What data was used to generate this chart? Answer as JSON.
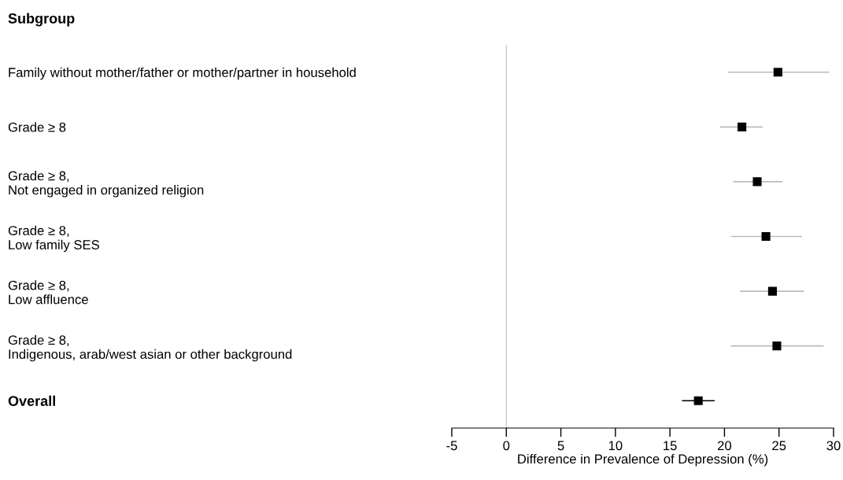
{
  "chart_data": {
    "type": "scatter",
    "orientation": "horizontal",
    "annotations": [
      "Subgroup"
    ],
    "xlabel": "Difference in Prevalence of Depression (%)",
    "categories": [
      "Family without mother/father or mother/partner in household",
      "Grade ≥ 8",
      "Grade ≥ 8,\nNot engaged in organized religion",
      "Grade ≥ 8,\nLow family SES",
      "Grade ≥ 8,\nLow affluence",
      "Grade ≥ 8,\nIndigenous, arab/west asian or other background",
      "Overall"
    ],
    "series": [
      {
        "color": "#000000",
        "values": [
          24.9,
          21.6,
          23.0,
          23.8,
          24.4,
          24.8,
          null
        ],
        "errors": [
          [
            20.3,
            29.6
          ],
          [
            19.6,
            23.5
          ],
          [
            20.8,
            25.3
          ],
          [
            20.6,
            27.1
          ],
          [
            21.4,
            27.3
          ],
          [
            20.6,
            29.1
          ],
          null
        ]
      },
      {
        "color": "#000000",
        "values": [
          null,
          null,
          null,
          null,
          null,
          null,
          17.6
        ],
        "errors": [
          null,
          null,
          null,
          null,
          null,
          null,
          [
            16.1,
            19.1
          ]
        ]
      }
    ],
    "xlim": [
      -5,
      30
    ],
    "xticks": [
      -5,
      0,
      5,
      10,
      15,
      20,
      25,
      30
    ],
    "ref_lines": [
      {
        "axis": "x",
        "value": 0,
        "color": "#cccccc"
      }
    ],
    "marker": "square",
    "grid": false
  }
}
